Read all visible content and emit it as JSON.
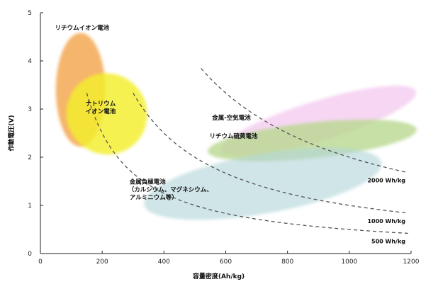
{
  "chart_data": {
    "type": "scatter",
    "xlabel": "容量密度(Ah/kg)",
    "ylabel": "作動電圧(V)",
    "xlim": [
      0,
      1200
    ],
    "ylim": [
      0,
      5
    ],
    "xticks": [
      "0",
      "200",
      "400",
      "600",
      "800",
      "1000",
      "1200"
    ],
    "yticks": [
      "0",
      "1",
      "2",
      "3",
      "4",
      "5"
    ],
    "grid": false,
    "regions": [
      {
        "label": [
          "リチウムイオン電池"
        ],
        "cx": 130,
        "cy": 3.4,
        "rx": 80,
        "ry": 1.18,
        "rotate": 0,
        "color": "#f2a042",
        "opacity": 0.78
      },
      {
        "label": [
          "ナトリウム",
          "イオン電池"
        ],
        "cx": 215,
        "cy": 2.9,
        "rx": 130,
        "ry": 0.85,
        "rotate": -35,
        "color": "#f3ee2a",
        "opacity": 0.82
      },
      {
        "label": [
          "金属-空気電池"
        ],
        "cx": 900,
        "cy": 2.75,
        "rx": 330,
        "ry": 0.42,
        "rotate": -17,
        "color": "#f3c6ee",
        "opacity": 0.72
      },
      {
        "label": [
          "リチウム硫黄電池"
        ],
        "cx": 880,
        "cy": 2.35,
        "rx": 340,
        "ry": 0.37,
        "rotate": -6,
        "color": "#b9d890",
        "opacity": 0.8
      },
      {
        "label": [
          "金属負極電池",
          "（カルシウム、マグネシウム、",
          "アルミニウム等）"
        ],
        "cx": 720,
        "cy": 1.45,
        "rx": 390,
        "ry": 0.62,
        "rotate": -10,
        "color": "#b2d5d9",
        "opacity": 0.62
      }
    ],
    "energy_curves": [
      {
        "label": "2000 Wh/kg",
        "value": 2000,
        "x_start": 520,
        "x_end": 1190
      },
      {
        "label": "1000 Wh/kg",
        "value": 1000,
        "x_start": 300,
        "x_end": 1190
      },
      {
        "label": "500 Wh/kg",
        "value": 500,
        "x_start": 150,
        "x_end": 1190
      }
    ]
  }
}
